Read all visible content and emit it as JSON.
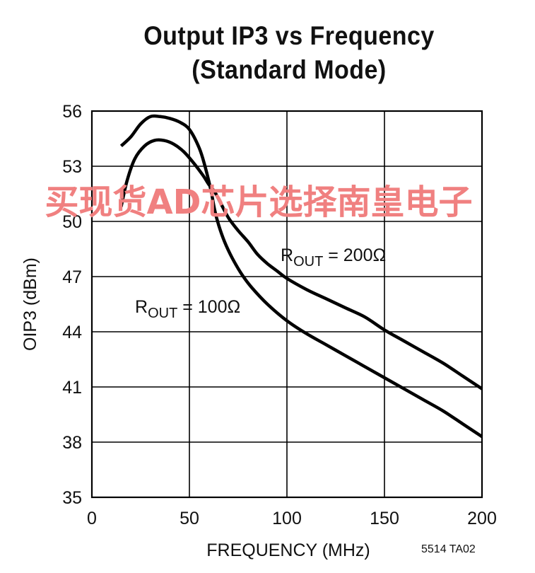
{
  "chart_data": {
    "type": "line",
    "title": "Output IP3 vs Frequency",
    "subtitle": "(Standard Mode)",
    "xlabel": "FREQUENCY (MHz)",
    "ylabel": "OIP3 (dBm)",
    "xlim": [
      0,
      200
    ],
    "ylim": [
      35,
      56
    ],
    "xticks": [
      0,
      50,
      100,
      150,
      200
    ],
    "yticks": [
      35,
      38,
      41,
      44,
      47,
      50,
      53,
      56
    ],
    "grid": true,
    "legend": "none",
    "series": [
      {
        "name": "ROUT = 200Ω",
        "label_main": "R",
        "label_sub": "OUT",
        "label_rest": " = 200Ω",
        "x": [
          15,
          18,
          22,
          27,
          32,
          37,
          42,
          47,
          52,
          57,
          60,
          63,
          66,
          70,
          75,
          80,
          85,
          90,
          95,
          100,
          110,
          120,
          130,
          140,
          150,
          160,
          170,
          180,
          190,
          200
        ],
        "y": [
          50.8,
          52.2,
          53.4,
          54.1,
          54.4,
          54.4,
          54.2,
          53.8,
          53.2,
          52.5,
          52.0,
          51.6,
          51.0,
          50.2,
          49.5,
          48.9,
          48.2,
          47.7,
          47.3,
          46.9,
          46.3,
          45.8,
          45.3,
          44.8,
          44.1,
          43.5,
          42.9,
          42.3,
          41.6,
          40.9
        ]
      },
      {
        "name": "ROUT = 100Ω",
        "label_main": "R",
        "label_sub": "OUT",
        "label_rest": " = 100Ω",
        "x": [
          15,
          20,
          25,
          30,
          35,
          40,
          45,
          50,
          55,
          58,
          61,
          63,
          65,
          68,
          72,
          77,
          82,
          90,
          100,
          110,
          120,
          130,
          140,
          150,
          160,
          170,
          180,
          190,
          200
        ],
        "y": [
          54.1,
          54.6,
          55.3,
          55.7,
          55.7,
          55.6,
          55.4,
          55.0,
          54.0,
          53.0,
          51.7,
          50.6,
          49.8,
          48.9,
          48.0,
          47.1,
          46.4,
          45.5,
          44.6,
          43.9,
          43.3,
          42.7,
          42.1,
          41.5,
          40.9,
          40.3,
          39.7,
          39.0,
          38.3
        ]
      }
    ],
    "watermark": "买现货AD芯片选择南皇电子",
    "watermark_color": "#f08080",
    "line_color": "#000000",
    "grid_color": "#000000",
    "figure_code": "5514 TA02"
  }
}
